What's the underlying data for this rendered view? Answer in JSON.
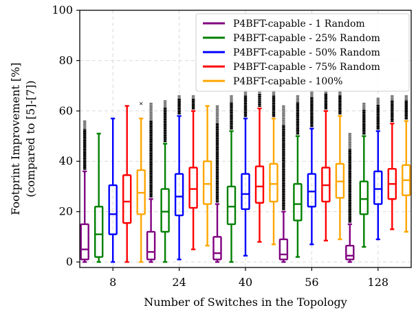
{
  "chart_data": {
    "type": "boxplot",
    "xlabel": "Number of Switches in the Topology",
    "ylabel_line1": "Footprint Improvement [%]",
    "ylabel_line2": "(compared to [5]-[7])",
    "ylim": [
      0,
      100
    ],
    "yticks": [
      0,
      20,
      40,
      60,
      80,
      100
    ],
    "grid": true,
    "legend_position": "top-right",
    "categories": [
      "8",
      "24",
      "40",
      "56",
      "128"
    ],
    "series": [
      {
        "name": "P4BFT-capable - 1 Random",
        "color": "#800080",
        "boxes": [
          {
            "whisker_low": 0,
            "q1": 1,
            "median": 5,
            "q3": 15,
            "whisker_high": 36,
            "outliers_from": 37,
            "outliers_to": 56
          },
          {
            "whisker_low": 0,
            "q1": 1,
            "median": 4,
            "q3": 12,
            "whisker_high": 25,
            "outliers_from": 26,
            "outliers_to": 63
          },
          {
            "whisker_low": 0,
            "q1": 1,
            "median": 3.5,
            "q3": 10,
            "whisker_high": 23,
            "outliers_from": 24,
            "outliers_to": 62
          },
          {
            "whisker_low": 0,
            "q1": 1,
            "median": 3,
            "q3": 9,
            "whisker_high": 20,
            "outliers_from": 21,
            "outliers_to": 62
          },
          {
            "whisker_low": 0,
            "q1": 1,
            "median": 2.5,
            "q3": 6.5,
            "whisker_high": 15,
            "outliers_from": 16,
            "outliers_to": 51
          }
        ]
      },
      {
        "name": "P4BFT-capable - 25% Random",
        "color": "#008000",
        "boxes": [
          {
            "whisker_low": 0,
            "q1": 2,
            "median": 11,
            "q3": 22,
            "whisker_high": 51,
            "outliers_from": null,
            "outliers_to": null
          },
          {
            "whisker_low": 0,
            "q1": 12,
            "median": 20,
            "q3": 29,
            "whisker_high": 47,
            "outliers_from": 48,
            "outliers_to": 64
          },
          {
            "whisker_low": 0,
            "q1": 15,
            "median": 22,
            "q3": 30,
            "whisker_high": 52,
            "outliers_from": 53,
            "outliers_to": 66
          },
          {
            "whisker_low": 2,
            "q1": 16.5,
            "median": 23,
            "q3": 31,
            "whisker_high": 50,
            "outliers_from": 51,
            "outliers_to": 66
          },
          {
            "whisker_low": 6,
            "q1": 19,
            "median": 25,
            "q3": 32,
            "whisker_high": 50,
            "outliers_from": 51,
            "outliers_to": 63
          }
        ]
      },
      {
        "name": "P4BFT-capable - 50% Random",
        "color": "#0000ff",
        "boxes": [
          {
            "whisker_low": 0,
            "q1": 11,
            "median": 19,
            "q3": 30.5,
            "whisker_high": 57,
            "outliers_from": null,
            "outliers_to": null
          },
          {
            "whisker_low": 1,
            "q1": 18.5,
            "median": 26,
            "q3": 35,
            "whisker_high": 58,
            "outliers_from": 59,
            "outliers_to": 66
          },
          {
            "whisker_low": 2.5,
            "q1": 21,
            "median": 27,
            "q3": 35,
            "whisker_high": 57,
            "outliers_from": 58,
            "outliers_to": 68
          },
          {
            "whisker_low": 7,
            "q1": 22,
            "median": 28,
            "q3": 35,
            "whisker_high": 53,
            "outliers_from": 54,
            "outliers_to": 68
          },
          {
            "whisker_low": 9,
            "q1": 23,
            "median": 29,
            "q3": 36,
            "whisker_high": 52,
            "outliers_from": 53,
            "outliers_to": 65
          }
        ]
      },
      {
        "name": "P4BFT-capable - 75% Random",
        "color": "#ff0000",
        "boxes": [
          {
            "whisker_low": 0,
            "q1": 15.5,
            "median": 24,
            "q3": 34.5,
            "whisker_high": 62,
            "outliers_from": null,
            "outliers_to": null
          },
          {
            "whisker_low": 5,
            "q1": 21.5,
            "median": 29,
            "q3": 37.5,
            "whisker_high": 60,
            "outliers_from": 61,
            "outliers_to": 66
          },
          {
            "whisker_low": 8,
            "q1": 23.5,
            "median": 30,
            "q3": 38,
            "whisker_high": 61,
            "outliers_from": 62,
            "outliers_to": 68
          },
          {
            "whisker_low": 8.5,
            "q1": 24,
            "median": 30.5,
            "q3": 37.5,
            "whisker_high": 60,
            "outliers_from": 61,
            "outliers_to": 68
          },
          {
            "whisker_low": 13,
            "q1": 25,
            "median": 31,
            "q3": 37,
            "whisker_high": 55,
            "outliers_from": 56,
            "outliers_to": 66
          }
        ]
      },
      {
        "name": "P4BFT-capable - 100%",
        "color": "#ffa500",
        "boxes": [
          {
            "whisker_low": 0,
            "q1": 19,
            "median": 27.5,
            "q3": 36.5,
            "whisker_high": 57,
            "outliers_from": 63,
            "outliers_to": 63
          },
          {
            "whisker_low": 6.5,
            "q1": 23,
            "median": 31,
            "q3": 40,
            "whisker_high": 62,
            "outliers_from": null,
            "outliers_to": null
          },
          {
            "whisker_low": 7,
            "q1": 24,
            "median": 31,
            "q3": 39,
            "whisker_high": 57,
            "outliers_from": 58,
            "outliers_to": 68
          },
          {
            "whisker_low": 9,
            "q1": 25.5,
            "median": 32,
            "q3": 39,
            "whisker_high": 58,
            "outliers_from": 59,
            "outliers_to": 68
          },
          {
            "whisker_low": 12,
            "q1": 26.5,
            "median": 32.5,
            "q3": 38.5,
            "whisker_high": 56,
            "outliers_from": 57,
            "outliers_to": 66
          }
        ]
      }
    ]
  }
}
